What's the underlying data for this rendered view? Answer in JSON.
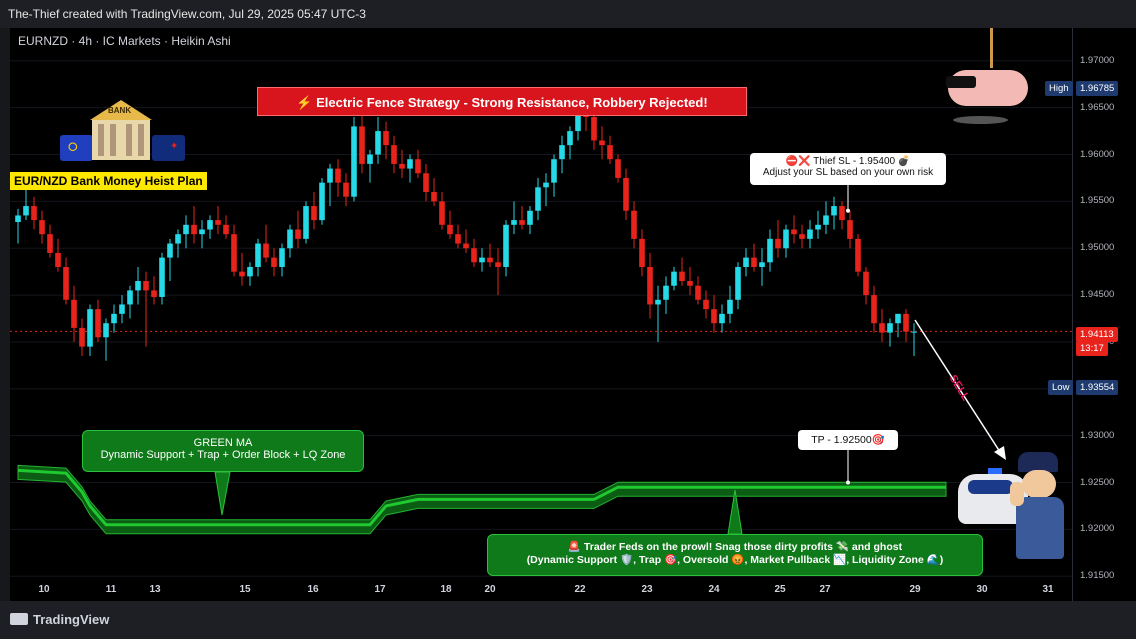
{
  "header": {
    "text": "The-Thief created with TradingView.com, Jul 29, 2025 05:47 UTC-3"
  },
  "symbol_line": "EURNZD · 4h · IC Markets · Heikin Ashi",
  "footer": {
    "logo_text": "TradingView"
  },
  "banner": {
    "text": "⚡ Electric Fence Strategy - Strong Resistance, Robbery Rejected!"
  },
  "bank": {
    "label": "BANK",
    "plan": "EUR/NZD Bank Money Heist Plan"
  },
  "sl_note": {
    "line1": "⛔❌ Thief SL - 1.95400 💣",
    "line2": "Adjust your SL based on your own risk"
  },
  "tp_note": {
    "text": "TP - 1.92500🎯"
  },
  "green_ma_note": {
    "line1": "GREEN MA",
    "line2": "Dynamic Support + Trap + Order Block + LQ Zone"
  },
  "feds_note": {
    "line1": "🚨 Trader Feds on the prowl! Snag those dirty profits 💸 and ghost",
    "line2": "(Dynamic Support 🛡️, Trap 🎯, Oversold 😡, Market Pullback 📉, Liquidity Zone 🌊)"
  },
  "sell_label": "SELL",
  "price_labels": {
    "high_tag": "High",
    "high": "1.96785",
    "current": "1.94113",
    "countdown": "13:17",
    "low_tag": "Low",
    "low": "1.93554"
  },
  "colors": {
    "up": "#26d9e6",
    "down": "#e8231c",
    "ma": "#1fc930",
    "background": "#000000"
  },
  "chart_data": {
    "type": "candlestick",
    "style": "Heikin Ashi",
    "symbol": "EURNZD",
    "timeframe": "4h",
    "broker": "IC Markets",
    "y_ticks": [
      "1.97000",
      "1.96500",
      "1.96000",
      "1.95500",
      "1.95000",
      "1.94500",
      "1.94000",
      "1.93500",
      "1.93000",
      "1.92500",
      "1.92000",
      "1.91500"
    ],
    "ylim": [
      1.9146,
      1.9735
    ],
    "x_ticks": [
      "10",
      "11",
      "13",
      "15",
      "16",
      "17",
      "18",
      "20",
      "22",
      "23",
      "24",
      "25",
      "27",
      "29",
      "30",
      "31"
    ],
    "stop_loss": 1.954,
    "take_profit": 1.925,
    "current_price": 1.94113,
    "high": 1.96785,
    "low": 1.93554,
    "candles_ohlc": [
      [
        1.9528,
        1.9542,
        1.9505,
        1.9535
      ],
      [
        1.9535,
        1.9565,
        1.953,
        1.9545
      ],
      [
        1.9545,
        1.9555,
        1.952,
        1.953
      ],
      [
        1.953,
        1.954,
        1.9505,
        1.9515
      ],
      [
        1.9515,
        1.9525,
        1.949,
        1.9495
      ],
      [
        1.9495,
        1.951,
        1.9475,
        1.948
      ],
      [
        1.948,
        1.949,
        1.944,
        1.9445
      ],
      [
        1.9445,
        1.946,
        1.94,
        1.9415
      ],
      [
        1.9415,
        1.9425,
        1.9385,
        1.9395
      ],
      [
        1.9395,
        1.944,
        1.9385,
        1.9435
      ],
      [
        1.9435,
        1.9445,
        1.94,
        1.9405
      ],
      [
        1.9405,
        1.9425,
        1.938,
        1.942
      ],
      [
        1.942,
        1.944,
        1.941,
        1.943
      ],
      [
        1.943,
        1.945,
        1.942,
        1.944
      ],
      [
        1.944,
        1.946,
        1.9425,
        1.9455
      ],
      [
        1.9455,
        1.948,
        1.944,
        1.9465
      ],
      [
        1.9465,
        1.9475,
        1.9395,
        1.9455
      ],
      [
        1.9455,
        1.947,
        1.944,
        1.9448
      ],
      [
        1.9448,
        1.9495,
        1.944,
        1.949
      ],
      [
        1.949,
        1.951,
        1.9465,
        1.9505
      ],
      [
        1.9505,
        1.952,
        1.949,
        1.9515
      ],
      [
        1.9515,
        1.9535,
        1.95,
        1.9525
      ],
      [
        1.9525,
        1.9545,
        1.9505,
        1.9515
      ],
      [
        1.9515,
        1.953,
        1.95,
        1.952
      ],
      [
        1.952,
        1.9535,
        1.951,
        1.953
      ],
      [
        1.953,
        1.9545,
        1.9515,
        1.9525
      ],
      [
        1.9525,
        1.9535,
        1.951,
        1.9515
      ],
      [
        1.9515,
        1.9525,
        1.947,
        1.9475
      ],
      [
        1.9475,
        1.9495,
        1.946,
        1.947
      ],
      [
        1.947,
        1.9485,
        1.946,
        1.948
      ],
      [
        1.948,
        1.951,
        1.947,
        1.9505
      ],
      [
        1.9505,
        1.9525,
        1.9485,
        1.949
      ],
      [
        1.949,
        1.95,
        1.947,
        1.948
      ],
      [
        1.948,
        1.9505,
        1.947,
        1.95
      ],
      [
        1.95,
        1.9525,
        1.949,
        1.952
      ],
      [
        1.952,
        1.954,
        1.95,
        1.951
      ],
      [
        1.951,
        1.955,
        1.9505,
        1.9545
      ],
      [
        1.9545,
        1.956,
        1.952,
        1.953
      ],
      [
        1.953,
        1.9575,
        1.9525,
        1.957
      ],
      [
        1.957,
        1.959,
        1.9545,
        1.9585
      ],
      [
        1.9585,
        1.9595,
        1.9555,
        1.957
      ],
      [
        1.957,
        1.958,
        1.9545,
        1.9555
      ],
      [
        1.9555,
        1.964,
        1.955,
        1.963
      ],
      [
        1.963,
        1.966,
        1.958,
        1.959
      ],
      [
        1.959,
        1.9605,
        1.957,
        1.96
      ],
      [
        1.96,
        1.964,
        1.959,
        1.9625
      ],
      [
        1.9625,
        1.9635,
        1.9595,
        1.961
      ],
      [
        1.961,
        1.962,
        1.958,
        1.959
      ],
      [
        1.959,
        1.9605,
        1.9575,
        1.9585
      ],
      [
        1.9585,
        1.96,
        1.957,
        1.9595
      ],
      [
        1.9595,
        1.9605,
        1.9575,
        1.958
      ],
      [
        1.958,
        1.959,
        1.955,
        1.956
      ],
      [
        1.956,
        1.9575,
        1.9545,
        1.955
      ],
      [
        1.955,
        1.956,
        1.952,
        1.9525
      ],
      [
        1.9525,
        1.954,
        1.951,
        1.9515
      ],
      [
        1.9515,
        1.9525,
        1.95,
        1.9505
      ],
      [
        1.9505,
        1.952,
        1.9495,
        1.95
      ],
      [
        1.95,
        1.951,
        1.948,
        1.9485
      ],
      [
        1.9485,
        1.95,
        1.9475,
        1.949
      ],
      [
        1.949,
        1.9505,
        1.948,
        1.9485
      ],
      [
        1.9485,
        1.95,
        1.945,
        1.948
      ],
      [
        1.948,
        1.953,
        1.947,
        1.9525
      ],
      [
        1.9525,
        1.955,
        1.9515,
        1.953
      ],
      [
        1.953,
        1.9545,
        1.952,
        1.9525
      ],
      [
        1.9525,
        1.9545,
        1.9515,
        1.954
      ],
      [
        1.954,
        1.9575,
        1.953,
        1.9565
      ],
      [
        1.9565,
        1.958,
        1.9545,
        1.957
      ],
      [
        1.957,
        1.96,
        1.9555,
        1.9595
      ],
      [
        1.9595,
        1.962,
        1.958,
        1.961
      ],
      [
        1.961,
        1.963,
        1.9595,
        1.9625
      ],
      [
        1.9625,
        1.9665,
        1.9615,
        1.9655
      ],
      [
        1.9655,
        1.966,
        1.9625,
        1.964
      ],
      [
        1.964,
        1.965,
        1.9605,
        1.9615
      ],
      [
        1.9615,
        1.963,
        1.9595,
        1.961
      ],
      [
        1.961,
        1.962,
        1.959,
        1.9595
      ],
      [
        1.9595,
        1.96,
        1.957,
        1.9575
      ],
      [
        1.9575,
        1.9585,
        1.953,
        1.954
      ],
      [
        1.954,
        1.955,
        1.95,
        1.951
      ],
      [
        1.951,
        1.952,
        1.947,
        1.948
      ],
      [
        1.948,
        1.9495,
        1.9425,
        1.944
      ],
      [
        1.944,
        1.946,
        1.94,
        1.9445
      ],
      [
        1.9445,
        1.947,
        1.943,
        1.946
      ],
      [
        1.946,
        1.948,
        1.9455,
        1.9475
      ],
      [
        1.9475,
        1.949,
        1.946,
        1.9465
      ],
      [
        1.9465,
        1.948,
        1.945,
        1.946
      ],
      [
        1.946,
        1.947,
        1.944,
        1.9445
      ],
      [
        1.9445,
        1.9455,
        1.9425,
        1.9435
      ],
      [
        1.9435,
        1.945,
        1.941,
        1.942
      ],
      [
        1.942,
        1.944,
        1.941,
        1.943
      ],
      [
        1.943,
        1.946,
        1.942,
        1.9445
      ],
      [
        1.9445,
        1.9485,
        1.9435,
        1.948
      ],
      [
        1.948,
        1.95,
        1.947,
        1.949
      ],
      [
        1.949,
        1.9505,
        1.9475,
        1.948
      ],
      [
        1.948,
        1.95,
        1.946,
        1.9485
      ],
      [
        1.9485,
        1.952,
        1.9475,
        1.951
      ],
      [
        1.951,
        1.953,
        1.949,
        1.95
      ],
      [
        1.95,
        1.9525,
        1.949,
        1.952
      ],
      [
        1.952,
        1.9535,
        1.9505,
        1.9515
      ],
      [
        1.9515,
        1.9525,
        1.95,
        1.951
      ],
      [
        1.951,
        1.953,
        1.95,
        1.952
      ],
      [
        1.952,
        1.954,
        1.951,
        1.9525
      ],
      [
        1.9525,
        1.955,
        1.9515,
        1.9535
      ],
      [
        1.9535,
        1.9555,
        1.952,
        1.9545
      ],
      [
        1.9545,
        1.955,
        1.952,
        1.953
      ],
      [
        1.953,
        1.954,
        1.95,
        1.951
      ],
      [
        1.951,
        1.9515,
        1.947,
        1.9475
      ],
      [
        1.9475,
        1.948,
        1.944,
        1.945
      ],
      [
        1.945,
        1.946,
        1.941,
        1.942
      ],
      [
        1.942,
        1.9435,
        1.94,
        1.941
      ],
      [
        1.941,
        1.9425,
        1.9395,
        1.942
      ],
      [
        1.942,
        1.943,
        1.9405,
        1.943
      ],
      [
        1.943,
        1.9435,
        1.94,
        1.9411
      ],
      [
        1.9411,
        1.942,
        1.9385,
        1.9411
      ]
    ],
    "ma_band": [
      {
        "x": 0,
        "y": 1.9263
      },
      {
        "x": 6,
        "y": 1.926
      },
      {
        "x": 8,
        "y": 1.924
      },
      {
        "x": 9,
        "y": 1.9225
      },
      {
        "x": 11,
        "y": 1.9205
      },
      {
        "x": 20,
        "y": 1.9205
      },
      {
        "x": 44,
        "y": 1.9205
      },
      {
        "x": 46,
        "y": 1.9225
      },
      {
        "x": 50,
        "y": 1.9232
      },
      {
        "x": 72,
        "y": 1.9232
      },
      {
        "x": 75,
        "y": 1.9245
      },
      {
        "x": 116,
        "y": 1.9245
      }
    ]
  }
}
